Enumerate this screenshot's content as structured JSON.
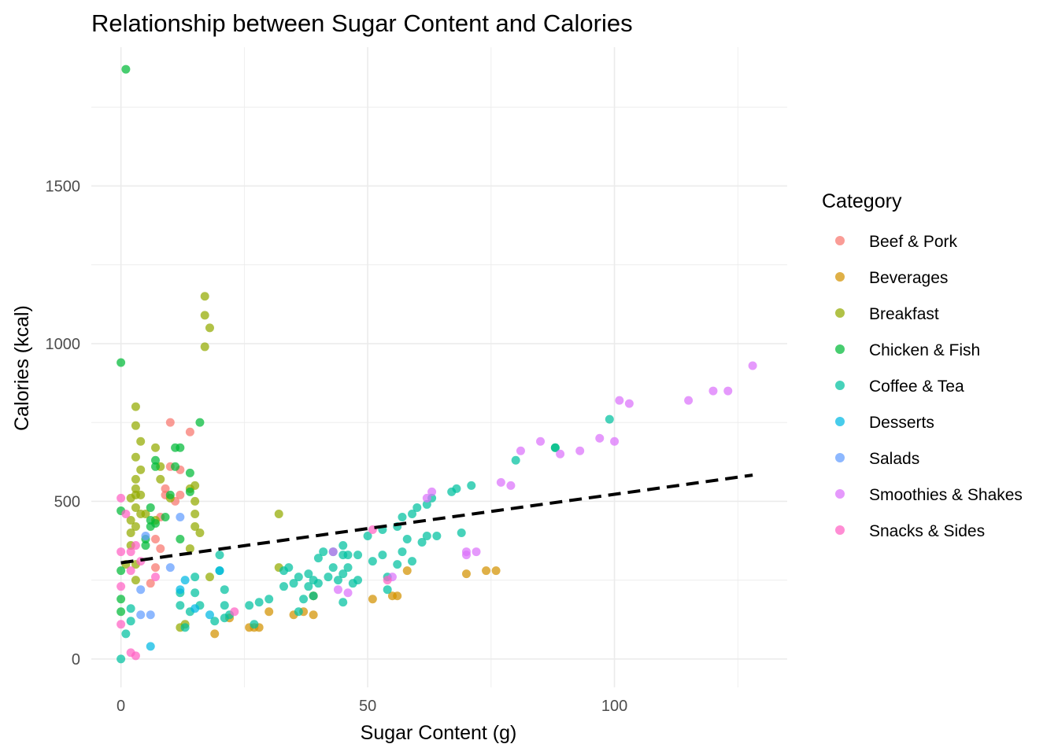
{
  "chart_data": {
    "type": "scatter",
    "title": "Relationship between Sugar Content and Calories",
    "xlabel": "Sugar Content (g)",
    "ylabel": "Calories (kcal)",
    "xlim": [
      -6,
      135
    ],
    "ylim": [
      -90,
      1940
    ],
    "x_ticks": [
      0,
      50,
      100
    ],
    "y_ticks": [
      0,
      500,
      1000,
      1500
    ],
    "grid": true,
    "legend": {
      "title": "Category",
      "position": "right"
    },
    "trend_line": {
      "style": "dashed",
      "color": "#000000",
      "x": [
        0,
        128
      ],
      "y": [
        305,
        583
      ]
    },
    "series": [
      {
        "name": "Beef & Pork",
        "color": "#F8766D",
        "points": [
          [
            7,
            380
          ],
          [
            8,
            350
          ],
          [
            9,
            540
          ],
          [
            10,
            610
          ],
          [
            10,
            750
          ],
          [
            11,
            500
          ],
          [
            12,
            600
          ],
          [
            14,
            720
          ],
          [
            6,
            240
          ],
          [
            7,
            290
          ],
          [
            8,
            450
          ],
          [
            12,
            520
          ],
          [
            9,
            520
          ]
        ]
      },
      {
        "name": "Beverages",
        "color": "#D39200",
        "points": [
          [
            19,
            80
          ],
          [
            22,
            130
          ],
          [
            26,
            100
          ],
          [
            27,
            100
          ],
          [
            28,
            100
          ],
          [
            30,
            150
          ],
          [
            35,
            140
          ],
          [
            37,
            150
          ],
          [
            39,
            140
          ],
          [
            39,
            200
          ],
          [
            51,
            190
          ],
          [
            55,
            200
          ],
          [
            56,
            200
          ],
          [
            58,
            280
          ],
          [
            70,
            270
          ],
          [
            74,
            280
          ],
          [
            76,
            280
          ]
        ]
      },
      {
        "name": "Breakfast",
        "color": "#93AA00",
        "points": [
          [
            1,
            300
          ],
          [
            2,
            360
          ],
          [
            2,
            400
          ],
          [
            2,
            440
          ],
          [
            2,
            510
          ],
          [
            3,
            420
          ],
          [
            3,
            480
          ],
          [
            3,
            520
          ],
          [
            3,
            540
          ],
          [
            3,
            570
          ],
          [
            3,
            640
          ],
          [
            3,
            740
          ],
          [
            3,
            800
          ],
          [
            4,
            460
          ],
          [
            4,
            520
          ],
          [
            4,
            600
          ],
          [
            4,
            690
          ],
          [
            3,
            300
          ],
          [
            3,
            250
          ],
          [
            5,
            460
          ],
          [
            7,
            440
          ],
          [
            7,
            670
          ],
          [
            8,
            570
          ],
          [
            8,
            610
          ],
          [
            10,
            510
          ],
          [
            12,
            100
          ],
          [
            13,
            110
          ],
          [
            14,
            540
          ],
          [
            14,
            350
          ],
          [
            15,
            420
          ],
          [
            15,
            460
          ],
          [
            15,
            500
          ],
          [
            15,
            550
          ],
          [
            16,
            400
          ],
          [
            17,
            990
          ],
          [
            17,
            1090
          ],
          [
            17,
            1150
          ],
          [
            18,
            1050
          ],
          [
            18,
            260
          ],
          [
            32,
            460
          ],
          [
            32,
            290
          ],
          [
            39,
            200
          ]
        ]
      },
      {
        "name": "Chicken & Fish",
        "color": "#00BA38",
        "points": [
          [
            0,
            940
          ],
          [
            0,
            470
          ],
          [
            1,
            1870
          ],
          [
            0,
            280
          ],
          [
            0,
            190
          ],
          [
            0,
            150
          ],
          [
            5,
            360
          ],
          [
            5,
            380
          ],
          [
            6,
            420
          ],
          [
            6,
            440
          ],
          [
            6,
            480
          ],
          [
            7,
            610
          ],
          [
            7,
            630
          ],
          [
            7,
            430
          ],
          [
            9,
            450
          ],
          [
            10,
            520
          ],
          [
            11,
            670
          ],
          [
            11,
            610
          ],
          [
            12,
            670
          ],
          [
            12,
            380
          ],
          [
            14,
            530
          ],
          [
            14,
            590
          ],
          [
            16,
            750
          ],
          [
            88,
            670
          ]
        ]
      },
      {
        "name": "Coffee & Tea",
        "color": "#00C19F",
        "points": [
          [
            0,
            0
          ],
          [
            1,
            80
          ],
          [
            2,
            120
          ],
          [
            2,
            160
          ],
          [
            12,
            170
          ],
          [
            12,
            210
          ],
          [
            13,
            100
          ],
          [
            14,
            150
          ],
          [
            15,
            210
          ],
          [
            15,
            260
          ],
          [
            16,
            170
          ],
          [
            19,
            120
          ],
          [
            20,
            280
          ],
          [
            20,
            330
          ],
          [
            21,
            130
          ],
          [
            21,
            170
          ],
          [
            21,
            220
          ],
          [
            22,
            140
          ],
          [
            26,
            170
          ],
          [
            27,
            110
          ],
          [
            28,
            180
          ],
          [
            30,
            190
          ],
          [
            33,
            230
          ],
          [
            33,
            280
          ],
          [
            34,
            290
          ],
          [
            35,
            240
          ],
          [
            36,
            150
          ],
          [
            36,
            260
          ],
          [
            37,
            190
          ],
          [
            38,
            230
          ],
          [
            38,
            270
          ],
          [
            39,
            200
          ],
          [
            39,
            250
          ],
          [
            40,
            240
          ],
          [
            40,
            320
          ],
          [
            41,
            340
          ],
          [
            42,
            260
          ],
          [
            43,
            290
          ],
          [
            43,
            340
          ],
          [
            44,
            250
          ],
          [
            45,
            180
          ],
          [
            45,
            270
          ],
          [
            45,
            330
          ],
          [
            45,
            360
          ],
          [
            46,
            290
          ],
          [
            46,
            330
          ],
          [
            47,
            240
          ],
          [
            48,
            330
          ],
          [
            48,
            250
          ],
          [
            50,
            390
          ],
          [
            51,
            310
          ],
          [
            53,
            330
          ],
          [
            53,
            410
          ],
          [
            54,
            220
          ],
          [
            54,
            260
          ],
          [
            56,
            300
          ],
          [
            56,
            420
          ],
          [
            57,
            340
          ],
          [
            57,
            450
          ],
          [
            58,
            380
          ],
          [
            59,
            310
          ],
          [
            59,
            460
          ],
          [
            60,
            480
          ],
          [
            61,
            370
          ],
          [
            62,
            390
          ],
          [
            62,
            490
          ],
          [
            63,
            510
          ],
          [
            64,
            390
          ],
          [
            67,
            530
          ],
          [
            68,
            540
          ],
          [
            69,
            400
          ],
          [
            71,
            550
          ],
          [
            80,
            630
          ],
          [
            88,
            670
          ],
          [
            99,
            760
          ]
        ]
      },
      {
        "name": "Desserts",
        "color": "#00B9E3",
        "points": [
          [
            6,
            40
          ],
          [
            12,
            220
          ],
          [
            13,
            250
          ],
          [
            15,
            160
          ],
          [
            18,
            140
          ],
          [
            20,
            280
          ]
        ]
      },
      {
        "name": "Salads",
        "color": "#619CFF",
        "points": [
          [
            4,
            140
          ],
          [
            4,
            220
          ],
          [
            5,
            390
          ],
          [
            6,
            140
          ],
          [
            10,
            290
          ],
          [
            12,
            450
          ]
        ]
      },
      {
        "name": "Smoothies & Shakes",
        "color": "#DB72FB",
        "points": [
          [
            43,
            340
          ],
          [
            44,
            220
          ],
          [
            46,
            210
          ],
          [
            55,
            260
          ],
          [
            62,
            510
          ],
          [
            63,
            530
          ],
          [
            70,
            340
          ],
          [
            70,
            330
          ],
          [
            72,
            340
          ],
          [
            77,
            560
          ],
          [
            79,
            550
          ],
          [
            81,
            660
          ],
          [
            85,
            690
          ],
          [
            89,
            650
          ],
          [
            93,
            660
          ],
          [
            97,
            700
          ],
          [
            100,
            690
          ],
          [
            101,
            820
          ],
          [
            103,
            810
          ],
          [
            115,
            820
          ],
          [
            120,
            850
          ],
          [
            123,
            850
          ],
          [
            128,
            930
          ]
        ]
      },
      {
        "name": "Snacks & Sides",
        "color": "#FF61C3",
        "points": [
          [
            0,
            510
          ],
          [
            0,
            340
          ],
          [
            0,
            230
          ],
          [
            0,
            110
          ],
          [
            1,
            460
          ],
          [
            2,
            20
          ],
          [
            3,
            10
          ],
          [
            2,
            280
          ],
          [
            2,
            340
          ],
          [
            3,
            360
          ],
          [
            4,
            310
          ],
          [
            7,
            260
          ],
          [
            23,
            150
          ],
          [
            54,
            250
          ],
          [
            51,
            410
          ]
        ]
      }
    ]
  }
}
